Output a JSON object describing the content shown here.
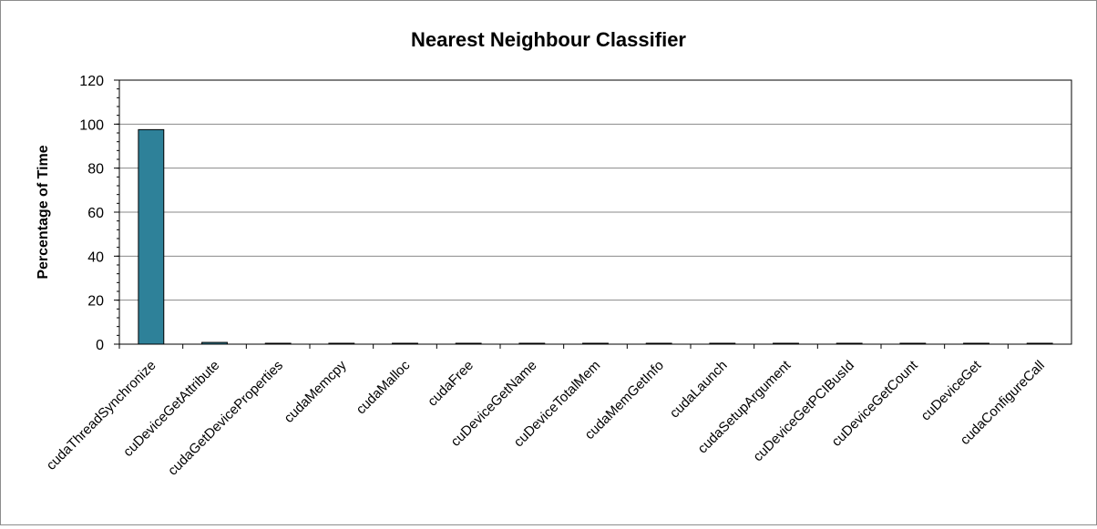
{
  "chart_data": {
    "type": "bar",
    "title": "Nearest Neighbour Classifier",
    "xlabel": "",
    "ylabel": "Percentage of Time",
    "ylim": [
      0,
      120
    ],
    "yticks": [
      0,
      20,
      40,
      60,
      80,
      100,
      120
    ],
    "grid": true,
    "legend": "none",
    "bar_color": "#2e8199",
    "categories": [
      "cudaThreadSynchronize",
      "cuDeviceGetAttribute",
      "cudaGetDeviceProperties",
      "cudaMemcpy",
      "cudaMalloc",
      "cudaFree",
      "cuDeviceGetName",
      "cuDeviceTotalMem",
      "cudaMemGetInfo",
      "cudaLaunch",
      "cudaSetupArgument",
      "cuDeviceGetPCIBusId",
      "cuDeviceGetCount",
      "cuDeviceGet",
      "cudaConfigureCall"
    ],
    "values": [
      97.5,
      0.8,
      0.3,
      0.2,
      0.2,
      0.2,
      0.2,
      0.2,
      0.2,
      0.2,
      0.2,
      0.2,
      0.2,
      0.2,
      0.2
    ]
  }
}
